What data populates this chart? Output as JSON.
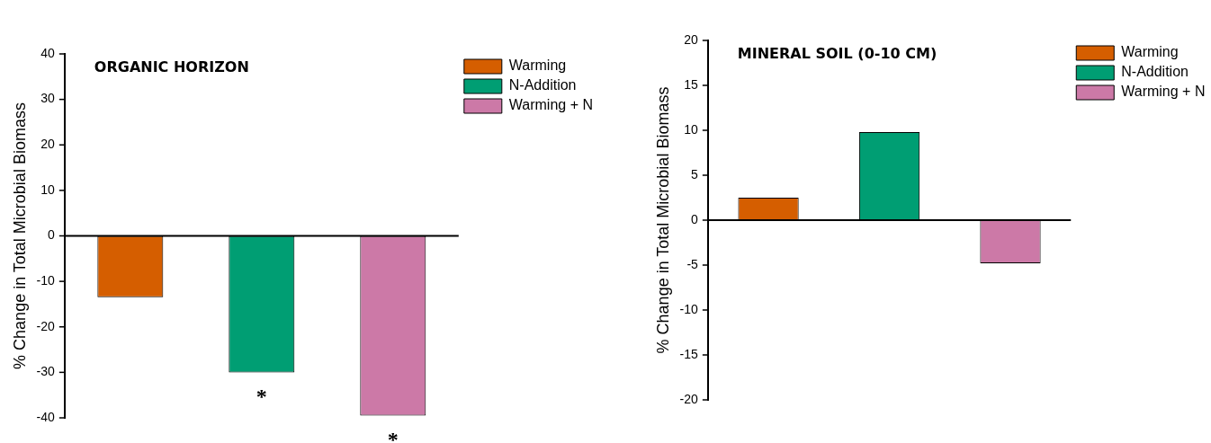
{
  "chart_data": [
    {
      "type": "bar",
      "title": "ORGANIC HORIZON",
      "ylabel": "% Change in Total Microbial Biomass",
      "categories": [
        null,
        null,
        null
      ],
      "ylim": [
        -40,
        40
      ],
      "yticks": [
        -40,
        -30,
        -20,
        -10,
        0,
        10,
        20,
        30,
        40
      ],
      "legend": "top right",
      "series": [
        {
          "name": "Warming",
          "color": "#d55e00",
          "values": [
            -13.5,
            null,
            null
          ]
        },
        {
          "name": "N-Addition",
          "color": "#009e73",
          "values": [
            null,
            -30,
            null
          ],
          "value_labels": [
            null,
            "*",
            null
          ]
        },
        {
          "name": "Warming + N",
          "color": "#cc79a7",
          "values": [
            null,
            null,
            -39.5
          ],
          "value_labels": [
            null,
            null,
            "*"
          ]
        }
      ]
    },
    {
      "type": "bar",
      "title": "MINERAL SOIL (0-10 CM)",
      "ylabel": "% Change in Total Microbial Biomass",
      "categories": [
        null,
        null,
        null
      ],
      "ylim": [
        -20,
        20
      ],
      "yticks": [
        -20,
        -15,
        -10,
        -5,
        0,
        5,
        10,
        15,
        20
      ],
      "legend": "top right",
      "series": [
        {
          "name": "Warming",
          "color": "#d55e00",
          "values": [
            2.5,
            null,
            null
          ]
        },
        {
          "name": "N-Addition",
          "color": "#009e73",
          "values": [
            null,
            9.8,
            null
          ]
        },
        {
          "name": "Warming + N",
          "color": "#cc79a7",
          "values": [
            null,
            null,
            -4.8
          ]
        }
      ]
    }
  ]
}
